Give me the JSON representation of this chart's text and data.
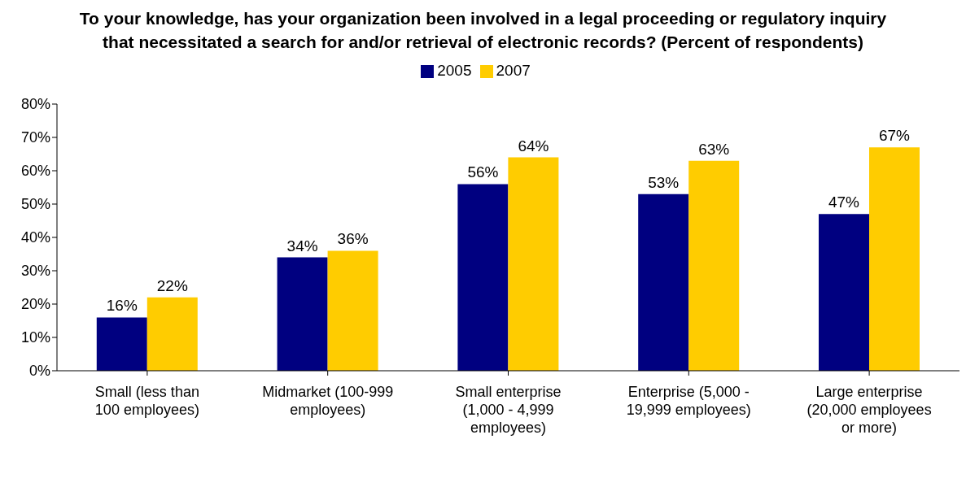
{
  "chart_data": {
    "type": "bar",
    "title": "To your knowledge, has your organization been involved in a legal proceeding or regulatory inquiry that necessitated a search for and/or retrieval of electronic records? (Percent of respondents)",
    "categories": [
      "Small (less than 100 employees)",
      "Midmarket (100-999 employees)",
      "Small enterprise (1,000 - 4,999 employees)",
      "Enterprise (5,000 - 19,999 employees)",
      "Large enterprise (20,000 employees or more)"
    ],
    "series": [
      {
        "name": "2005",
        "color": "#000080",
        "values": [
          16,
          34,
          56,
          53,
          47
        ],
        "value_labels": [
          "16%",
          "34%",
          "56%",
          "53%",
          "47%"
        ]
      },
      {
        "name": "2007",
        "color": "#ffcc00",
        "values": [
          22,
          36,
          64,
          63,
          67
        ],
        "value_labels": [
          "22%",
          "36%",
          "64%",
          "63%",
          "67%"
        ]
      }
    ],
    "ylim": [
      0,
      80
    ],
    "yticks": [
      {
        "value": 0,
        "label": "0%"
      },
      {
        "value": 10,
        "label": "10%"
      },
      {
        "value": 20,
        "label": "20%"
      },
      {
        "value": 30,
        "label": "30%"
      },
      {
        "value": 40,
        "label": "40%"
      },
      {
        "value": 50,
        "label": "50%"
      },
      {
        "value": 60,
        "label": "60%"
      },
      {
        "value": 70,
        "label": "70%"
      },
      {
        "value": 80,
        "label": "80%"
      }
    ],
    "grid": false,
    "legend": "top"
  }
}
